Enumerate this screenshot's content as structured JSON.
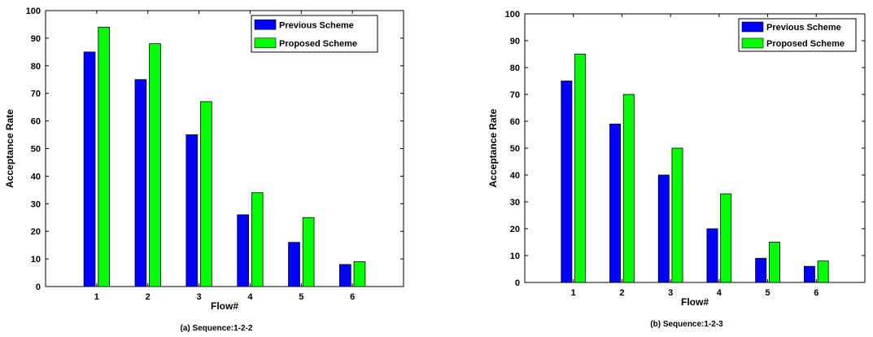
{
  "colors": {
    "previous": "#0000ff",
    "proposed": "#00ff00",
    "axis": "#000000",
    "background": "#ffffff"
  },
  "chart_data": [
    {
      "type": "bar",
      "title": "",
      "caption": "(a) Sequence:1-2-2",
      "xlabel": "Flow#",
      "ylabel": "Acceptance Rate",
      "ylim": [
        0,
        100
      ],
      "yticks": [
        0,
        10,
        20,
        30,
        40,
        50,
        60,
        70,
        80,
        90,
        100
      ],
      "categories": [
        "1",
        "2",
        "3",
        "4",
        "5",
        "6"
      ],
      "grid": false,
      "legend_position": "top-right",
      "series": [
        {
          "name": "Previous Scheme",
          "color": "#0000ff",
          "values": [
            85,
            75,
            55,
            26,
            16,
            8
          ]
        },
        {
          "name": "Proposed Scheme",
          "color": "#00ff00",
          "values": [
            94,
            88,
            67,
            34,
            25,
            9
          ]
        }
      ]
    },
    {
      "type": "bar",
      "title": "",
      "caption": "(b) Sequence:1-2-3",
      "xlabel": "Flow#",
      "ylabel": "Acceptance Rate",
      "ylim": [
        0,
        100
      ],
      "yticks": [
        0,
        10,
        20,
        30,
        40,
        50,
        60,
        70,
        80,
        90,
        100
      ],
      "categories": [
        "1",
        "2",
        "3",
        "4",
        "5",
        "6"
      ],
      "grid": false,
      "legend_position": "top-right",
      "series": [
        {
          "name": "Previous Scheme",
          "color": "#0000ff",
          "values": [
            75,
            59,
            40,
            20,
            9,
            6
          ]
        },
        {
          "name": "Proposed Scheme",
          "color": "#00ff00",
          "values": [
            85,
            70,
            50,
            33,
            15,
            8
          ]
        }
      ]
    }
  ]
}
